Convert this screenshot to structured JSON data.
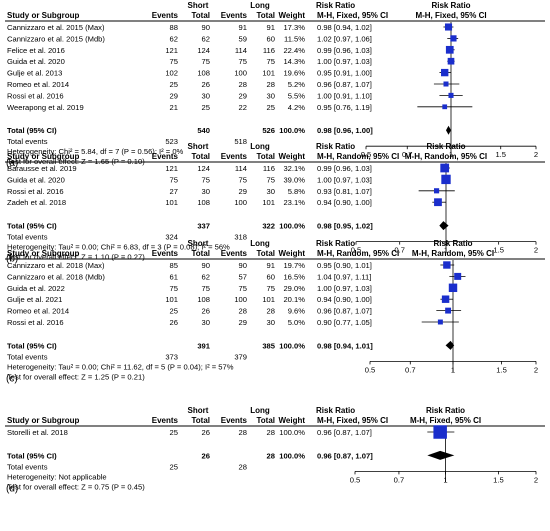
{
  "panels": [
    {
      "label": "(a)",
      "group_short": "Short",
      "group_long": "Long",
      "col_study": "Study or Subgroup",
      "col_events": "Events",
      "col_total": "Total",
      "col_weight": "Weight",
      "col_rr": "Risk Ratio",
      "method": "M-H, Fixed, 95% CI",
      "studies": [
        {
          "name": "Cannizzaro et al. 2015 (Max)",
          "se": "88",
          "st": "90",
          "le": "91",
          "lt": "91",
          "w": "17.3%",
          "ci": "0.98 [0.94, 1.02]",
          "rr": 0.98,
          "lo": 0.94,
          "hi": 1.02
        },
        {
          "name": "Cannizzaro et al. 2015 (Mdb)",
          "se": "62",
          "st": "62",
          "le": "59",
          "lt": "60",
          "w": "11.5%",
          "ci": "1.02 [0.97, 1.06]",
          "rr": 1.02,
          "lo": 0.97,
          "hi": 1.06
        },
        {
          "name": "Felice et al. 2016",
          "se": "121",
          "st": "124",
          "le": "114",
          "lt": "116",
          "w": "22.4%",
          "ci": "0.99 [0.96, 1.03]",
          "rr": 0.99,
          "lo": 0.96,
          "hi": 1.03
        },
        {
          "name": "Guida et al. 2020",
          "se": "75",
          "st": "75",
          "le": "75",
          "lt": "75",
          "w": "14.3%",
          "ci": "1.00 [0.97, 1.03]",
          "rr": 1.0,
          "lo": 0.97,
          "hi": 1.03
        },
        {
          "name": "Gulje et al. 2013",
          "se": "102",
          "st": "108",
          "le": "100",
          "lt": "101",
          "w": "19.6%",
          "ci": "0.95 [0.91, 1.00]",
          "rr": 0.95,
          "lo": 0.91,
          "hi": 1.0
        },
        {
          "name": "Romeo et al. 2014",
          "se": "25",
          "st": "26",
          "le": "28",
          "lt": "28",
          "w": "5.2%",
          "ci": "0.96 [0.87, 1.07]",
          "rr": 0.96,
          "lo": 0.87,
          "hi": 1.07
        },
        {
          "name": "Rossi et al. 2016",
          "se": "29",
          "st": "30",
          "le": "29",
          "lt": "30",
          "w": "5.5%",
          "ci": "1.00 [0.91, 1.10]",
          "rr": 1.0,
          "lo": 0.91,
          "hi": 1.1
        },
        {
          "name": "Weerapong et al. 2019",
          "se": "21",
          "st": "25",
          "le": "22",
          "lt": "25",
          "w": "4.2%",
          "ci": "0.95 [0.76, 1.19]",
          "rr": 0.95,
          "lo": 0.76,
          "hi": 1.19
        }
      ],
      "total": {
        "label": "Total (95% CI)",
        "st": "540",
        "lt": "526",
        "w": "100.0%",
        "ci": "0.98 [0.96, 1.00]",
        "rr": 0.98,
        "lo": 0.96,
        "hi": 1.0
      },
      "events": {
        "label": "Total events",
        "s": "523",
        "l": "518"
      },
      "heterogeneity": "Heterogeneity: Chi² = 5.84, df = 7 (P = 0.56); I² = 0%",
      "overall": "Test for overall effect: Z = 1.65 (P = 0.10)",
      "ticks": [
        "0.5",
        "0.7",
        "1",
        "1.5",
        "2"
      ],
      "tick_values": [
        0.5,
        0.7,
        1,
        1.5,
        2
      ]
    },
    {
      "label": "(b)",
      "group_short": "Short",
      "group_long": "Long",
      "col_study": "Study or Subgroup",
      "col_events": "Events",
      "col_total": "Total",
      "col_weight": "Weight",
      "col_rr": "Risk Ratio",
      "method": "M-H, Random, 95% CI",
      "studies": [
        {
          "name": "Barausse et al. 2019",
          "se": "121",
          "st": "124",
          "le": "114",
          "lt": "116",
          "w": "32.1%",
          "ci": "0.99 [0.96, 1.03]",
          "rr": 0.99,
          "lo": 0.96,
          "hi": 1.03
        },
        {
          "name": "Guida et al. 2020",
          "se": "75",
          "st": "75",
          "le": "75",
          "lt": "75",
          "w": "39.0%",
          "ci": "1.00 [0.97, 1.03]",
          "rr": 1.0,
          "lo": 0.97,
          "hi": 1.03
        },
        {
          "name": "Rossi et al. 2016",
          "se": "27",
          "st": "30",
          "le": "29",
          "lt": "30",
          "w": "5.8%",
          "ci": "0.93 [0.81, 1.07]",
          "rr": 0.93,
          "lo": 0.81,
          "hi": 1.07
        },
        {
          "name": "Zadeh et al. 2018",
          "se": "101",
          "st": "108",
          "le": "100",
          "lt": "101",
          "w": "23.1%",
          "ci": "0.94 [0.90, 1.00]",
          "rr": 0.94,
          "lo": 0.9,
          "hi": 1.0
        }
      ],
      "total": {
        "label": "Total (95% CI)",
        "st": "337",
        "lt": "322",
        "w": "100.0%",
        "ci": "0.98 [0.95, 1.02]",
        "rr": 0.98,
        "lo": 0.95,
        "hi": 1.02
      },
      "events": {
        "label": "Total events",
        "s": "324",
        "l": "318"
      },
      "heterogeneity": "Heterogeneity: Tau² = 0.00; Chi² = 6.83, df = 3 (P = 0.08); I² = 56%",
      "overall": "Test for overall effect: Z = 1.10 (P = 0.27)",
      "ticks": [
        "0.5",
        "0.7",
        "1",
        "1.5",
        "2"
      ],
      "tick_values": [
        0.5,
        0.7,
        1,
        1.5,
        2
      ]
    },
    {
      "label": "(c)",
      "group_short": "Short",
      "group_long": "Long",
      "col_study": "Study or Subgroup",
      "col_events": "Events",
      "col_total": "Total",
      "col_weight": "Weight",
      "col_rr": "Risk Ratio",
      "method": "M-H, Random, 95% CI",
      "studies": [
        {
          "name": "Cannizzaro et al. 2018 (Max)",
          "se": "85",
          "st": "90",
          "le": "90",
          "lt": "91",
          "w": "19.7%",
          "ci": "0.95 [0.90, 1.01]",
          "rr": 0.95,
          "lo": 0.9,
          "hi": 1.01
        },
        {
          "name": "Cannizzaro et al. 2018 (Mdb)",
          "se": "61",
          "st": "62",
          "le": "57",
          "lt": "60",
          "w": "16.5%",
          "ci": "1.04 [0.97, 1.11]",
          "rr": 1.04,
          "lo": 0.97,
          "hi": 1.11
        },
        {
          "name": "Guida et al. 2022",
          "se": "75",
          "st": "75",
          "le": "75",
          "lt": "75",
          "w": "29.0%",
          "ci": "1.00 [0.97, 1.03]",
          "rr": 1.0,
          "lo": 0.97,
          "hi": 1.03
        },
        {
          "name": "Gulje et al. 2021",
          "se": "101",
          "st": "108",
          "le": "100",
          "lt": "101",
          "w": "20.1%",
          "ci": "0.94 [0.90, 1.00]",
          "rr": 0.94,
          "lo": 0.9,
          "hi": 1.0
        },
        {
          "name": "Romeo et al. 2014",
          "se": "25",
          "st": "26",
          "le": "28",
          "lt": "28",
          "w": "9.6%",
          "ci": "0.96 [0.87, 1.07]",
          "rr": 0.96,
          "lo": 0.87,
          "hi": 1.07
        },
        {
          "name": "Rossi et al. 2016",
          "se": "26",
          "st": "30",
          "le": "29",
          "lt": "30",
          "w": "5.0%",
          "ci": "0.90 [0.77, 1.05]",
          "rr": 0.9,
          "lo": 0.77,
          "hi": 1.05
        }
      ],
      "total": {
        "label": "Total (95% CI)",
        "st": "391",
        "lt": "385",
        "w": "100.0%",
        "ci": "0.98 [0.94, 1.01]",
        "rr": 0.98,
        "lo": 0.94,
        "hi": 1.01
      },
      "events": {
        "label": "Total events",
        "s": "373",
        "l": "379"
      },
      "heterogeneity": "Heterogeneity: Tau² = 0.00; Chi² = 11.62, df = 5 (P = 0.04); I² = 57%",
      "overall": "Test for overall effect: Z = 1.25 (P = 0.21)",
      "ticks": [
        "0.5",
        "0.7",
        "1",
        "1.5",
        "2"
      ],
      "tick_values": [
        0.5,
        0.7,
        1,
        1.5,
        2
      ]
    },
    {
      "label": "(d)",
      "group_short": "Short",
      "group_long": "Long",
      "col_study": "Study or Subgroup",
      "col_events": "Events",
      "col_total": "Total",
      "col_weight": "Weight",
      "col_rr": "Risk Ratio",
      "method": "M-H, Fixed, 95% CI",
      "studies": [
        {
          "name": "Storelli et al. 2018",
          "se": "25",
          "st": "26",
          "le": "28",
          "lt": "28",
          "w": "100.0%",
          "ci": "0.96 [0.87, 1.07]",
          "rr": 0.96,
          "lo": 0.87,
          "hi": 1.07
        }
      ],
      "total": {
        "label": "Total (95% CI)",
        "st": "26",
        "lt": "28",
        "w": "100.0%",
        "ci": "0.96 [0.87, 1.07]",
        "rr": 0.96,
        "lo": 0.87,
        "hi": 1.07
      },
      "events": {
        "label": "Total events",
        "s": "25",
        "l": "28"
      },
      "heterogeneity": "Heterogeneity: Not applicable",
      "overall": "Test for overall effect: Z = 0.75 (P = 0.45)",
      "ticks": [
        "0.5",
        "0.7",
        "1",
        "1.5",
        "2"
      ],
      "tick_values": [
        0.5,
        0.7,
        1,
        1.5,
        2
      ]
    }
  ],
  "colors": {
    "study_marker": "#1a2ecc",
    "total_marker": "#000000",
    "line": "#000000",
    "rule": "#000000"
  }
}
